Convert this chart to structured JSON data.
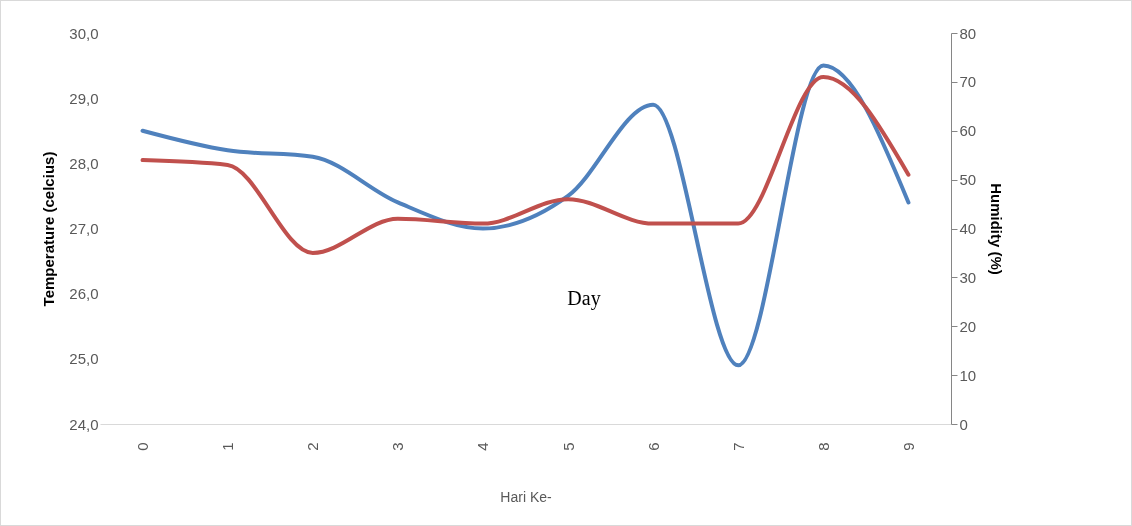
{
  "chart_data": {
    "type": "line",
    "xlabel": "Hari Ke-",
    "ylabel": "Temperature (celcius)",
    "y2label": "Humidity (%)",
    "categories": [
      "0",
      "1",
      "2",
      "3",
      "4",
      "5",
      "6",
      "7",
      "8",
      "9"
    ],
    "series": [
      {
        "color": "#4f81bd",
        "values": [
          28.5,
          28.2,
          28.1,
          27.4,
          27.0,
          27.5,
          28.9,
          24.9,
          29.5,
          27.4
        ]
      },
      {
        "color": "#c0504d",
        "axis": "y2",
        "values": [
          54,
          53,
          35,
          42,
          41,
          46,
          41,
          41,
          71,
          51
        ]
      }
    ],
    "ylim": [
      24,
      30
    ],
    "yticks": [
      {
        "value": 24,
        "label": "24,0"
      },
      {
        "value": 25,
        "label": "25,0"
      },
      {
        "value": 26,
        "label": "26,0"
      },
      {
        "value": 27,
        "label": "27,0"
      },
      {
        "value": 28,
        "label": "28,0"
      },
      {
        "value": 29,
        "label": "29,0"
      },
      {
        "value": 30,
        "label": "30,0"
      }
    ],
    "y2lim": [
      0,
      80
    ],
    "y2ticks": [
      0,
      10,
      20,
      30,
      40,
      50,
      60,
      70,
      80
    ],
    "annotations": [
      "Day"
    ],
    "grid": false,
    "line_style": "solid",
    "marker": "none"
  }
}
